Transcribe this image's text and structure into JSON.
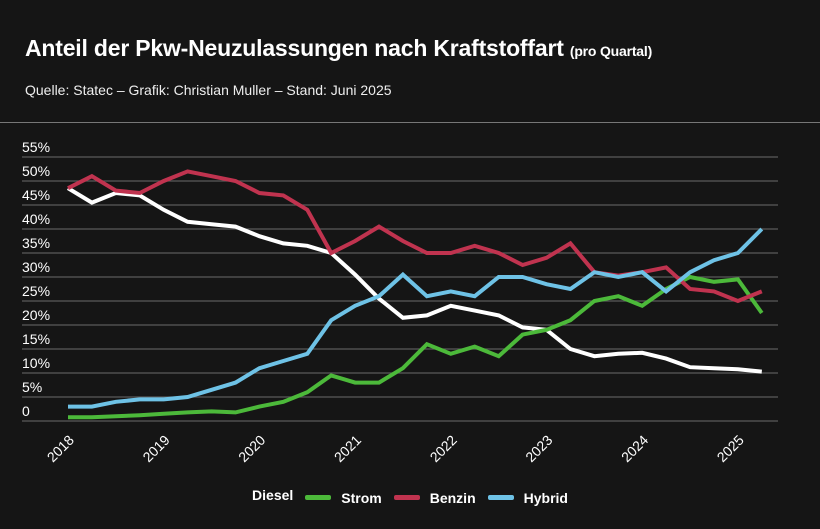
{
  "title": "Anteil der Pkw-Neuzulassungen nach Kraftstoffart",
  "title_suffix": "(pro Quartal)",
  "source": "Quelle: Statec – Grafik: Christian Muller – Stand: Juni 2025",
  "chart_data": {
    "type": "line",
    "title": "Anteil der Pkw-Neuzulassungen nach Kraftstoffart (pro Quartal)",
    "x_tick_labels": [
      "2018",
      "2019",
      "2020",
      "2021",
      "2022",
      "2023",
      "2024",
      "2025"
    ],
    "y_tick_labels": [
      "0",
      "5%",
      "10%",
      "15%",
      "20%",
      "25%",
      "30%",
      "35%",
      "40%",
      "45%",
      "50%",
      "55%"
    ],
    "ylim": [
      0,
      55
    ],
    "x_start": "2018 Q1",
    "x_end": "2025 Q2",
    "x_step": "quarter",
    "grid": true,
    "legend_position": "bottom",
    "series": [
      {
        "name": "Diesel",
        "color": "#ffffff",
        "values": [
          48.5,
          45.5,
          47.5,
          47,
          44,
          41.5,
          41,
          40.5,
          38.5,
          37,
          36.5,
          35,
          30.5,
          25.5,
          21.5,
          22,
          24,
          23,
          22,
          19.5,
          19,
          15,
          13.5,
          14,
          14.2,
          13,
          11.2,
          11,
          10.8,
          10.3
        ]
      },
      {
        "name": "Strom",
        "color": "#4cb93a",
        "values": [
          0.8,
          0.8,
          1,
          1.2,
          1.5,
          1.8,
          2,
          1.8,
          3,
          4,
          6,
          9.5,
          8,
          8,
          11,
          16,
          14,
          15.5,
          13.5,
          18,
          19,
          21,
          25,
          26,
          24,
          27.5,
          30,
          29,
          29.5,
          22.5
        ]
      },
      {
        "name": "Benzin",
        "color": "#c0334f",
        "values": [
          48.5,
          51,
          48,
          47.5,
          50,
          52,
          51,
          50,
          47.5,
          47,
          44,
          35,
          37.5,
          40.5,
          37.5,
          35,
          35,
          36.5,
          35,
          32.5,
          34,
          37,
          31,
          30.3,
          31,
          32,
          27.5,
          27,
          25,
          27
        ]
      },
      {
        "name": "Hybrid",
        "color": "#6ec2e6",
        "values": [
          3,
          3,
          4,
          4.5,
          4.5,
          5,
          6.5,
          8,
          11,
          12.5,
          14,
          21,
          24,
          26,
          30.5,
          26,
          27,
          26,
          30,
          30,
          28.5,
          27.5,
          31,
          30,
          31,
          27,
          31,
          33.5,
          35,
          40
        ]
      }
    ]
  }
}
